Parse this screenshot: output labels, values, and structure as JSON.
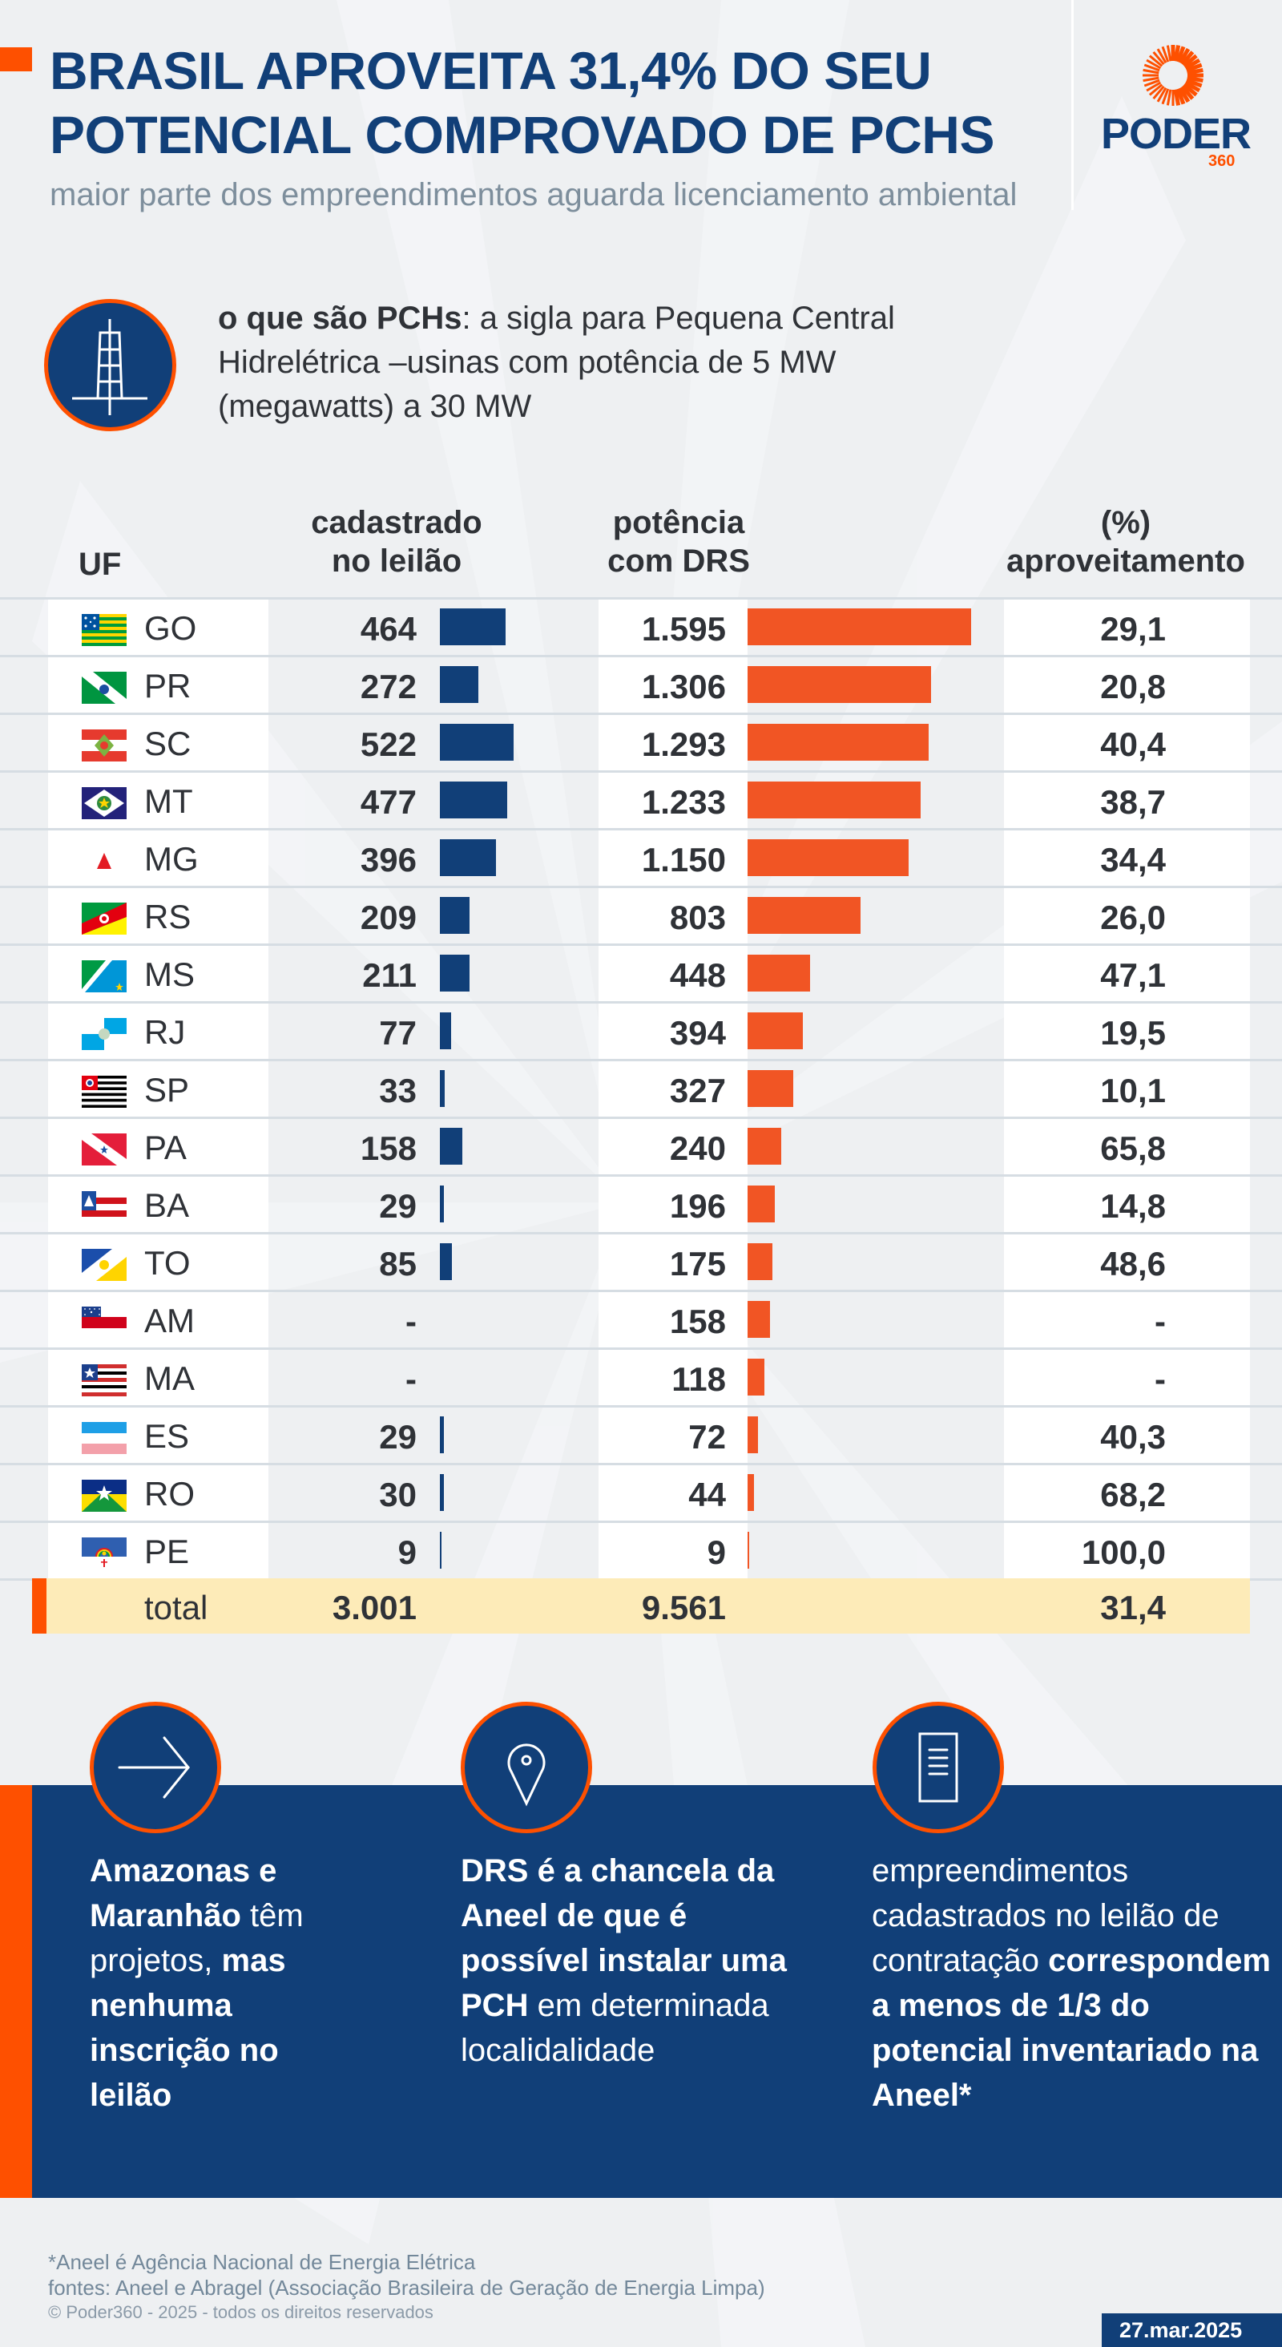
{
  "header": {
    "title_line1": "BRASIL APROVEITA 31,4% DO SEU",
    "title_line2": "POTENCIAL COMPROVADO DE PCHS",
    "subtitle": "maior parte dos empreendimentos aguarda licenciamento ambiental",
    "logo_text": "PODER",
    "logo_sub": "360"
  },
  "definition": {
    "icon": "transmission-tower-icon",
    "term": "o que são PCHs",
    "text": ": a sigla para Pequena Central Hidrelétrica –usinas com potência de 5 MW (megawatts) a 30 MW"
  },
  "colors": {
    "navy": "#113f78",
    "orange": "#fe5000",
    "bar_orange": "#f15524",
    "total_bg": "#fdebb8"
  },
  "chart_data": {
    "type": "table",
    "title": "BRASIL APROVEITA 31,4% DO SEU POTENCIAL COMPROVADO DE PCHS",
    "columns": [
      "UF",
      "cadastrado no leilão",
      "potência com DRS",
      "(%) aproveitamento"
    ],
    "headers": {
      "uf": "UF",
      "cad_l1": "cadastrado",
      "cad_l2": "no leilão",
      "pot_l1": "potência",
      "pot_l2": "com DRS",
      "pct_l1": "(%)",
      "pct_l2": "aproveitamento"
    },
    "rows": [
      {
        "uf": "GO",
        "cadastrado": "464",
        "cadastrado_value": 464,
        "potencia": "1.595",
        "potencia_value": 1595,
        "pct": "29,1"
      },
      {
        "uf": "PR",
        "cadastrado": "272",
        "cadastrado_value": 272,
        "potencia": "1.306",
        "potencia_value": 1306,
        "pct": "20,8"
      },
      {
        "uf": "SC",
        "cadastrado": "522",
        "cadastrado_value": 522,
        "potencia": "1.293",
        "potencia_value": 1293,
        "pct": "40,4"
      },
      {
        "uf": "MT",
        "cadastrado": "477",
        "cadastrado_value": 477,
        "potencia": "1.233",
        "potencia_value": 1233,
        "pct": "38,7"
      },
      {
        "uf": "MG",
        "cadastrado": "396",
        "cadastrado_value": 396,
        "potencia": "1.150",
        "potencia_value": 1150,
        "pct": "34,4"
      },
      {
        "uf": "RS",
        "cadastrado": "209",
        "cadastrado_value": 209,
        "potencia": "803",
        "potencia_value": 803,
        "pct": "26,0"
      },
      {
        "uf": "MS",
        "cadastrado": "211",
        "cadastrado_value": 211,
        "potencia": "448",
        "potencia_value": 448,
        "pct": "47,1"
      },
      {
        "uf": "RJ",
        "cadastrado": "77",
        "cadastrado_value": 77,
        "potencia": "394",
        "potencia_value": 394,
        "pct": "19,5"
      },
      {
        "uf": "SP",
        "cadastrado": "33",
        "cadastrado_value": 33,
        "potencia": "327",
        "potencia_value": 327,
        "pct": "10,1"
      },
      {
        "uf": "PA",
        "cadastrado": "158",
        "cadastrado_value": 158,
        "potencia": "240",
        "potencia_value": 240,
        "pct": "65,8"
      },
      {
        "uf": "BA",
        "cadastrado": "29",
        "cadastrado_value": 29,
        "potencia": "196",
        "potencia_value": 196,
        "pct": "14,8"
      },
      {
        "uf": "TO",
        "cadastrado": "85",
        "cadastrado_value": 85,
        "potencia": "175",
        "potencia_value": 175,
        "pct": "48,6"
      },
      {
        "uf": "AM",
        "cadastrado": "-",
        "cadastrado_value": 0,
        "potencia": "158",
        "potencia_value": 158,
        "pct": "-"
      },
      {
        "uf": "MA",
        "cadastrado": "-",
        "cadastrado_value": 0,
        "potencia": "118",
        "potencia_value": 118,
        "pct": "-"
      },
      {
        "uf": "ES",
        "cadastrado": "29",
        "cadastrado_value": 29,
        "potencia": "72",
        "potencia_value": 72,
        "pct": "40,3"
      },
      {
        "uf": "RO",
        "cadastrado": "30",
        "cadastrado_value": 30,
        "potencia": "44",
        "potencia_value": 44,
        "pct": "68,2"
      },
      {
        "uf": "PE",
        "cadastrado": "9",
        "cadastrado_value": 9,
        "potencia": "9",
        "potencia_value": 9,
        "pct": "100,0"
      }
    ],
    "total": {
      "label": "total",
      "cadastrado": "3.001",
      "potencia": "9.561",
      "pct": "31,4"
    },
    "series": [
      {
        "name": "cadastrado no leilão",
        "color": "#113f78"
      },
      {
        "name": "potência com DRS",
        "color": "#f15524"
      }
    ]
  },
  "info": [
    {
      "icon": "arrow-right-icon",
      "parts": [
        {
          "b": true,
          "t": "Amazonas e Maranhão"
        },
        {
          "b": false,
          "t": " têm projetos, "
        },
        {
          "b": true,
          "t": "mas nenhuma inscrição no leilão"
        }
      ]
    },
    {
      "icon": "map-pin-icon",
      "parts": [
        {
          "b": true,
          "t": "DRS é a chancela da Aneel de que é possível instalar uma PCH"
        },
        {
          "b": false,
          "t": " em determinada localidalidade"
        }
      ]
    },
    {
      "icon": "document-icon",
      "parts": [
        {
          "b": false,
          "t": "empreendimentos cadastrados no leilão de contratação "
        },
        {
          "b": true,
          "t": "correspondem a menos de 1/3 do potencial inventariado na Aneel*"
        }
      ]
    }
  ],
  "footer": {
    "note": "*Aneel é Agência Nacional de Energia Elétrica",
    "sources": "fontes: Aneel e Abragel (Associação Brasileira de Geração de Energia Limpa)",
    "copyright": "© Poder360 - 2025 - todos os direitos reservados",
    "date": "27.mar.2025"
  }
}
